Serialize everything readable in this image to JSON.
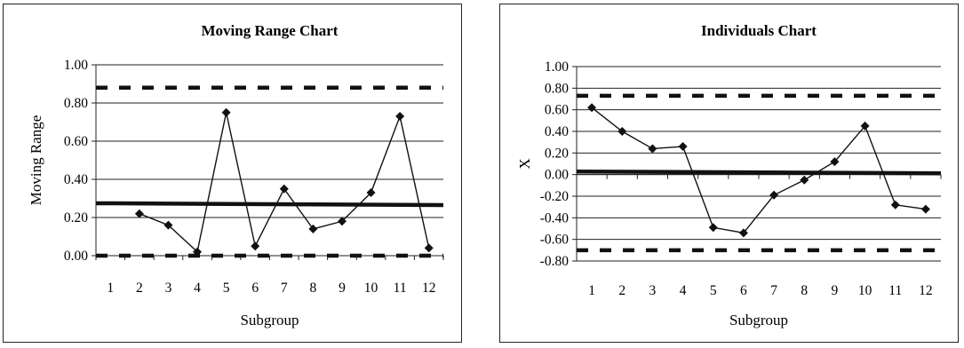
{
  "chart_data": [
    {
      "type": "line",
      "title": "Moving Range Chart",
      "xlabel": "Subgroup",
      "ylabel": "Moving Range",
      "categories": [
        "1",
        "2",
        "3",
        "4",
        "5",
        "6",
        "7",
        "8",
        "9",
        "10",
        "11",
        "12"
      ],
      "y_ticks": [
        "0.00",
        "0.20",
        "0.40",
        "0.60",
        "0.80",
        "1.00"
      ],
      "ylim": [
        0,
        1
      ],
      "grid": true,
      "series": [
        {
          "role": "data",
          "values": [
            null,
            0.22,
            0.16,
            0.02,
            0.75,
            0.05,
            0.35,
            0.14,
            0.18,
            0.33,
            0.73,
            0.04
          ]
        }
      ],
      "center_line": 0.27,
      "upper_limit": 0.88,
      "lower_limit": 0.0
    },
    {
      "type": "line",
      "title": "Individuals Chart",
      "xlabel": "Subgroup",
      "ylabel": "X",
      "categories": [
        "1",
        "2",
        "3",
        "4",
        "5",
        "6",
        "7",
        "8",
        "9",
        "10",
        "11",
        "12"
      ],
      "y_ticks": [
        "-0.80",
        "-0.60",
        "-0.40",
        "-0.20",
        "0.00",
        "0.20",
        "0.40",
        "0.60",
        "0.80",
        "1.00"
      ],
      "ylim": [
        -0.8,
        1
      ],
      "grid": true,
      "series": [
        {
          "role": "data",
          "values": [
            0.62,
            0.4,
            0.24,
            0.26,
            -0.49,
            -0.54,
            -0.19,
            -0.05,
            0.12,
            0.45,
            -0.28,
            -0.32
          ]
        }
      ],
      "center_line": 0.02,
      "upper_limit": 0.73,
      "lower_limit": -0.7
    }
  ],
  "style": {
    "line_color": "#111111",
    "grid_color": "#222222"
  }
}
